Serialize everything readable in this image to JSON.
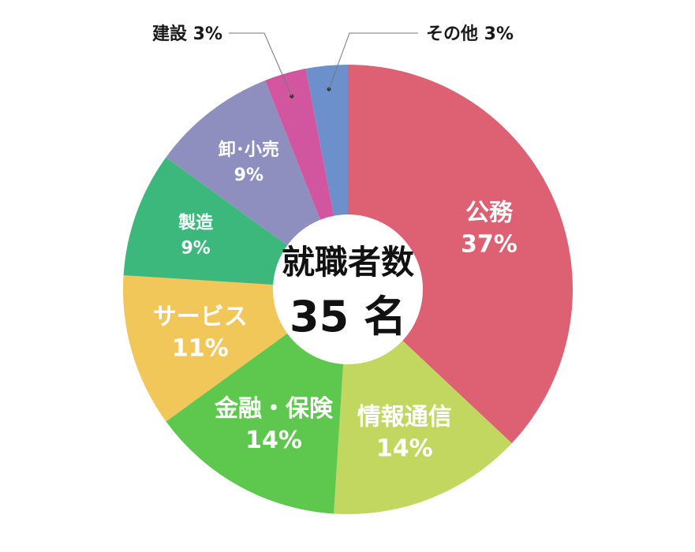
{
  "chart_data": {
    "type": "pie",
    "center": {
      "title": "就職者数",
      "total": "35 名"
    },
    "slices": [
      {
        "label": "公務",
        "value": 37,
        "value_label": "37%",
        "color": "#dd6172",
        "label_style": "inside-big"
      },
      {
        "label": "情報通信",
        "value": 14,
        "value_label": "14%",
        "color": "#c2d760",
        "label_style": "inside-big"
      },
      {
        "label": "金融・保険",
        "value": 14,
        "value_label": "14%",
        "color": "#5ec74e",
        "label_style": "inside-big"
      },
      {
        "label": "サービス",
        "value": 11,
        "value_label": "11%",
        "color": "#f2c75a",
        "label_style": "inside-big"
      },
      {
        "label": "製造",
        "value": 9,
        "value_label": "9%",
        "color": "#3db87c",
        "label_style": "inside-small"
      },
      {
        "label": "卸･小売",
        "value": 9,
        "value_label": "9%",
        "color": "#8e8fbf",
        "label_style": "inside-small"
      },
      {
        "label": "建設 3%",
        "value": 3,
        "value_label": "3%",
        "color": "#d2569f",
        "label_style": "outside-left"
      },
      {
        "label": "その他 3%",
        "value": 3,
        "value_label": "3%",
        "color": "#6c90cc",
        "label_style": "outside-right"
      }
    ]
  }
}
